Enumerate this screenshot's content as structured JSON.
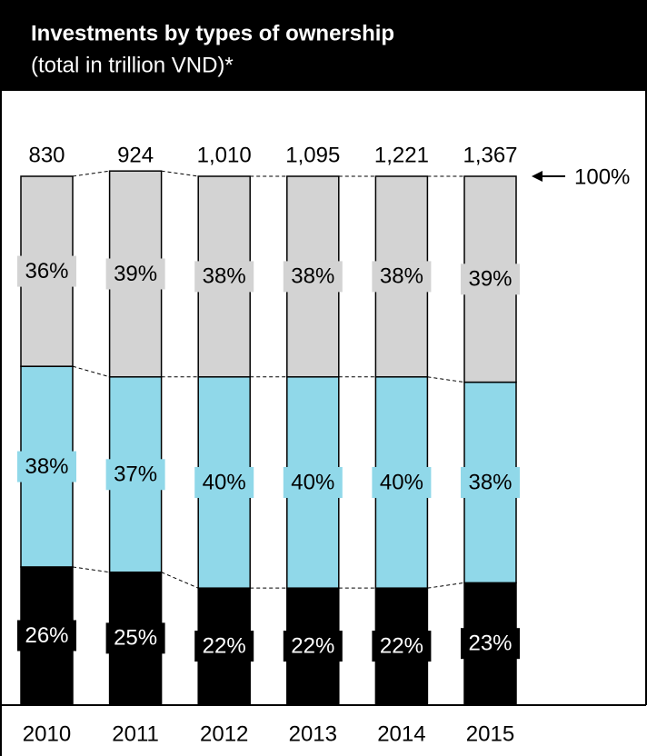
{
  "chart_data": {
    "type": "stacked_bar",
    "title": "Investments by types of ownership",
    "subtitle": "(total in trillion VND)*",
    "categories": [
      "2010",
      "2011",
      "2012",
      "2013",
      "2014",
      "2015"
    ],
    "totals": {
      "values": [
        830,
        924,
        1010,
        1095,
        1221,
        1367
      ],
      "value_labels": [
        "830",
        "924",
        "1,010",
        "1,095",
        "1,221",
        "1,367"
      ]
    },
    "series": [
      {
        "color": "#000000",
        "label_color": "#ffffff",
        "values": [
          26,
          25,
          22,
          22,
          22,
          23
        ],
        "value_labels": [
          "26%",
          "25%",
          "22%",
          "22%",
          "22%",
          "23%"
        ]
      },
      {
        "color": "#90d8e9",
        "label_color": "#000000",
        "values": [
          38,
          37,
          40,
          40,
          40,
          38
        ],
        "value_labels": [
          "38%",
          "37%",
          "40%",
          "40%",
          "40%",
          "38%"
        ]
      },
      {
        "color": "#d3d3d3",
        "label_color": "#000000",
        "values": [
          36,
          39,
          38,
          38,
          38,
          39
        ],
        "value_labels": [
          "36%",
          "39%",
          "38%",
          "38%",
          "38%",
          "39%"
        ]
      }
    ],
    "ylim": [
      0,
      100
    ],
    "annotation": "100%"
  }
}
